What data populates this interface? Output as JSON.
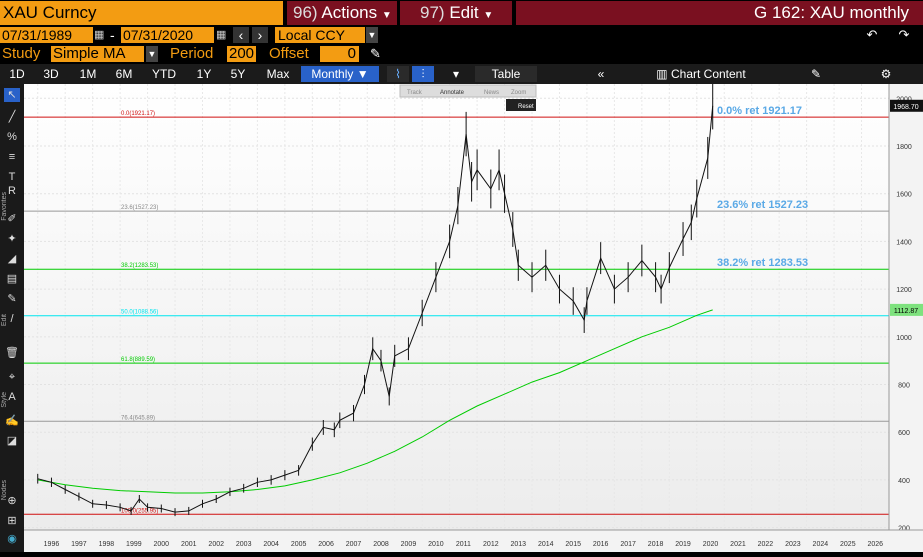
{
  "header": {
    "ticker": "XAU Curncy",
    "actions_code": "96)",
    "actions_label": "Actions",
    "edit_code": "97)",
    "edit_label": "Edit",
    "screen_title": "G 162: XAU monthly"
  },
  "range": {
    "start_date": "07/31/1989",
    "separator": "-",
    "end_date": "07/31/2020",
    "currency": "Local CCY"
  },
  "study": {
    "label": "Study",
    "value": "Simple MA",
    "period_label": "Period",
    "period_value": "200",
    "offset_label": "Offset",
    "offset_value": "0"
  },
  "periods": [
    "1D",
    "3D",
    "1M",
    "6M",
    "YTD",
    "1Y",
    "5Y",
    "Max"
  ],
  "frequency": "Monthly",
  "table_label": "Table",
  "chart_content_label": "Chart Content",
  "chart_toolbar": {
    "track": "Track",
    "annotate": "Annotate",
    "news": "News",
    "zoom": "Zoom",
    "reset": "Reset"
  },
  "side_labels": {
    "favorites": "Favorites",
    "edit": "Edit",
    "style": "Style",
    "nodes": "Nodes"
  },
  "colors": {
    "accent_orange": "#f39c12",
    "header_red": "#7a1020",
    "active_blue": "#2962c9",
    "retracement_green": "#00cc00",
    "retracement_cyan": "#00e5ee",
    "retracement_red": "#d01010",
    "retracement_gray": "#999999",
    "annotation_blue": "#5aa9e6"
  },
  "chart_data": {
    "type": "line",
    "series": [
      {
        "name": "",
        "x": [
          1996,
          1996.5,
          1997,
          1997.5,
          1998,
          1998.5,
          1999,
          1999.4,
          1999.7,
          2000,
          2000.5,
          2001,
          2001.5,
          2002,
          2002.5,
          2003,
          2003.5,
          2004,
          2004.5,
          2005,
          2005.5,
          2006,
          2006.4,
          2006.8,
          2007,
          2007.5,
          2007.9,
          2008.2,
          2008.5,
          2008.8,
          2009,
          2009.5,
          2010,
          2010.5,
          2011,
          2011.3,
          2011.6,
          2011.8,
          2012,
          2012.5,
          2012.8,
          2013,
          2013.3,
          2013.5,
          2014,
          2014.5,
          2015,
          2015.5,
          2015.9,
          2016,
          2016.5,
          2017,
          2017.5,
          2018,
          2018.5,
          2018.7,
          2019,
          2019.5,
          2019.8,
          2020,
          2020.4,
          2020.58
        ],
        "values": [
          405,
          390,
          360,
          330,
          300,
          295,
          285,
          270,
          320,
          285,
          280,
          265,
          270,
          300,
          320,
          350,
          365,
          390,
          400,
          420,
          440,
          550,
          620,
          610,
          650,
          680,
          800,
          950,
          900,
          750,
          920,
          950,
          1100,
          1250,
          1400,
          1550,
          1850,
          1650,
          1700,
          1620,
          1700,
          1600,
          1450,
          1300,
          1250,
          1300,
          1200,
          1150,
          1070,
          1150,
          1330,
          1200,
          1250,
          1320,
          1250,
          1200,
          1290,
          1410,
          1480,
          1580,
          1750,
          1968.7
        ]
      },
      {
        "name": "",
        "x": [
          1996,
          1997,
          1998,
          1999,
          2000,
          2001,
          2002,
          2003,
          2004,
          2005,
          2006,
          2007,
          2008,
          2009,
          2010,
          2011,
          2012,
          2013,
          2014,
          2015,
          2016,
          2017,
          2018,
          2019,
          2020,
          2020.58
        ],
        "values": [
          400,
          380,
          365,
          355,
          350,
          345,
          345,
          350,
          360,
          375,
          400,
          430,
          470,
          520,
          580,
          650,
          710,
          760,
          810,
          850,
          900,
          950,
          1000,
          1040,
          1090,
          1112.87
        ]
      }
    ],
    "retracements": [
      {
        "level": "0.0%",
        "value": 1921.17,
        "label": "0.0(1921.17)",
        "annotation": "0.0% ret 1921.17",
        "color": "#d01010"
      },
      {
        "level": "23.6%",
        "value": 1527.23,
        "label": "23.6(1527.23)",
        "annotation": "23.6% ret 1527.23",
        "color": "#999999"
      },
      {
        "level": "38.2%",
        "value": 1283.53,
        "label": "38.2(1283.53)",
        "annotation": "38.2% ret 1283.53",
        "color": "#00cc00"
      },
      {
        "level": "50.0%",
        "value": 1088.56,
        "label": "50.0(1088.56)",
        "annotation": "",
        "color": "#00e5ee"
      },
      {
        "level": "61.8%",
        "value": 889.59,
        "label": "61.8(889.59)",
        "annotation": "",
        "color": "#00cc00"
      },
      {
        "level": "76.4%",
        "value": 645.89,
        "label": "76.4(645.89)",
        "annotation": "",
        "color": "#999999"
      },
      {
        "level": "100.0%",
        "value": 255.95,
        "label": "100.0(255.95)",
        "annotation": "",
        "color": "#d01010"
      }
    ],
    "last_price_label": "1968.70",
    "ma_price_label": "1112.87",
    "x_ticks": [
      "1996",
      "1997",
      "1998",
      "1999",
      "2000",
      "2001",
      "2002",
      "2003",
      "2004",
      "2005",
      "2006",
      "2007",
      "2008",
      "2009",
      "2010",
      "2011",
      "2012",
      "2013",
      "2014",
      "2015",
      "2016",
      "2017",
      "2018",
      "2019",
      "2020",
      "2021",
      "2022",
      "2023",
      "2024",
      "2025",
      "2026"
    ],
    "y_ticks": [
      "200",
      "400",
      "600",
      "800",
      "1000",
      "1200",
      "1400",
      "1600",
      "1800",
      "2000"
    ],
    "xlim": [
      1995.5,
      2027
    ],
    "ylim": [
      190,
      2060
    ],
    "grid": true
  }
}
